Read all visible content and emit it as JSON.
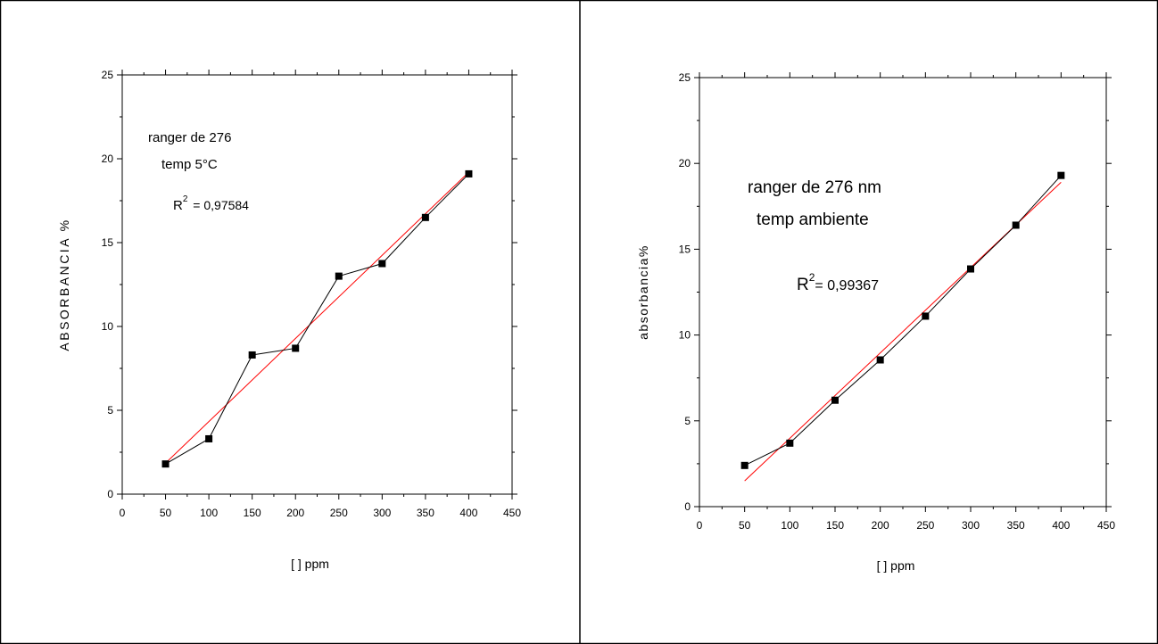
{
  "chart_data": [
    {
      "type": "line",
      "xlabel": "[ ] ppm",
      "ylabel": "ABSORBANCIA %",
      "xlim": [
        0,
        450
      ],
      "ylim": [
        0,
        25
      ],
      "x_ticks": [
        "0",
        "50",
        "100",
        "150",
        "200",
        "250",
        "300",
        "350",
        "400",
        "450"
      ],
      "y_ticks": [
        "0",
        "5",
        "10",
        "15",
        "20",
        "25"
      ],
      "x": [
        50,
        100,
        150,
        200,
        250,
        300,
        350,
        400
      ],
      "series": [
        {
          "values": [
            1.8,
            3.3,
            8.3,
            8.7,
            13.0,
            13.75,
            16.5,
            19.1
          ],
          "color": "#000000"
        }
      ],
      "fit": {
        "x": [
          50,
          400
        ],
        "y": [
          1.85,
          19.2
        ],
        "color": "#ff0000"
      },
      "annotations": {
        "line1": "ranger de 276",
        "line2": "temp 5°C",
        "r_label": "R",
        "r_sup": "2",
        "r_value": " = 0,97584"
      }
    },
    {
      "type": "line",
      "xlabel": "[ ] ppm",
      "ylabel": "absorbancia%",
      "xlim": [
        0,
        450
      ],
      "ylim": [
        0,
        25
      ],
      "x_ticks": [
        "0",
        "50",
        "100",
        "150",
        "200",
        "250",
        "300",
        "350",
        "400",
        "450"
      ],
      "y_ticks": [
        "0",
        "5",
        "10",
        "15",
        "20",
        "25"
      ],
      "x": [
        50,
        100,
        150,
        200,
        250,
        300,
        350,
        400
      ],
      "series": [
        {
          "values": [
            2.4,
            3.7,
            6.2,
            8.55,
            11.1,
            13.85,
            16.4,
            19.3
          ],
          "color": "#000000"
        }
      ],
      "fit": {
        "x": [
          50,
          400
        ],
        "y": [
          1.5,
          18.9
        ],
        "color": "#ff0000"
      },
      "annotations": {
        "line1": "ranger de 276 nm",
        "line2": "temp ambiente",
        "r_label": "R",
        "r_sup": "2",
        "r_value": "= 0,99367"
      }
    }
  ]
}
